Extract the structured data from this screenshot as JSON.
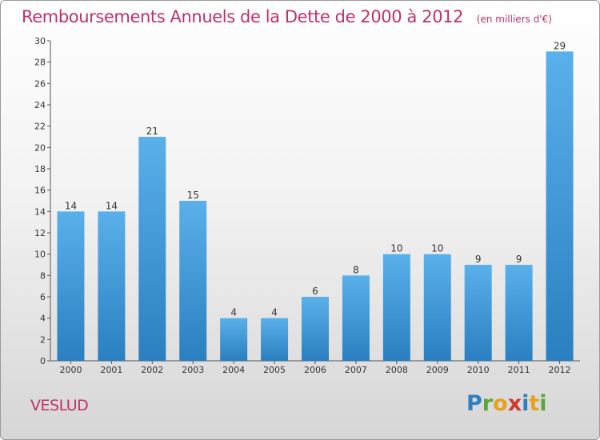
{
  "header": {
    "title": "Remboursements Annuels de la Dette de 2000 à 2012",
    "unit": "(en milliers d'€)"
  },
  "footer": {
    "commune": "VESLUD",
    "logo": {
      "letters": [
        "P",
        "r",
        "o",
        "x",
        "i",
        "t",
        "i"
      ],
      "colors": [
        "#2f7fc1",
        "#5aa83a",
        "#e8a11c",
        "#d13a2f",
        "#2f7fc1",
        "#e8a11c",
        "#5aa83a"
      ]
    }
  },
  "colors": {
    "bar_light": "#5ab0ea",
    "bar_dark": "#2a7fc0",
    "accent": "#c0306a"
  },
  "chart_data": {
    "type": "bar",
    "categories": [
      "2000",
      "2001",
      "2002",
      "2003",
      "2004",
      "2005",
      "2006",
      "2007",
      "2008",
      "2009",
      "2010",
      "2011",
      "2012"
    ],
    "values": [
      14,
      14,
      21,
      15,
      4,
      4,
      6,
      8,
      10,
      10,
      9,
      9,
      29
    ],
    "title": "Remboursements Annuels de la Dette de 2000 à 2012",
    "ylim": [
      0,
      30
    ],
    "yticks": [
      0,
      2,
      4,
      6,
      8,
      10,
      12,
      14,
      16,
      18,
      20,
      22,
      24,
      26,
      28,
      30
    ],
    "grid": false
  }
}
